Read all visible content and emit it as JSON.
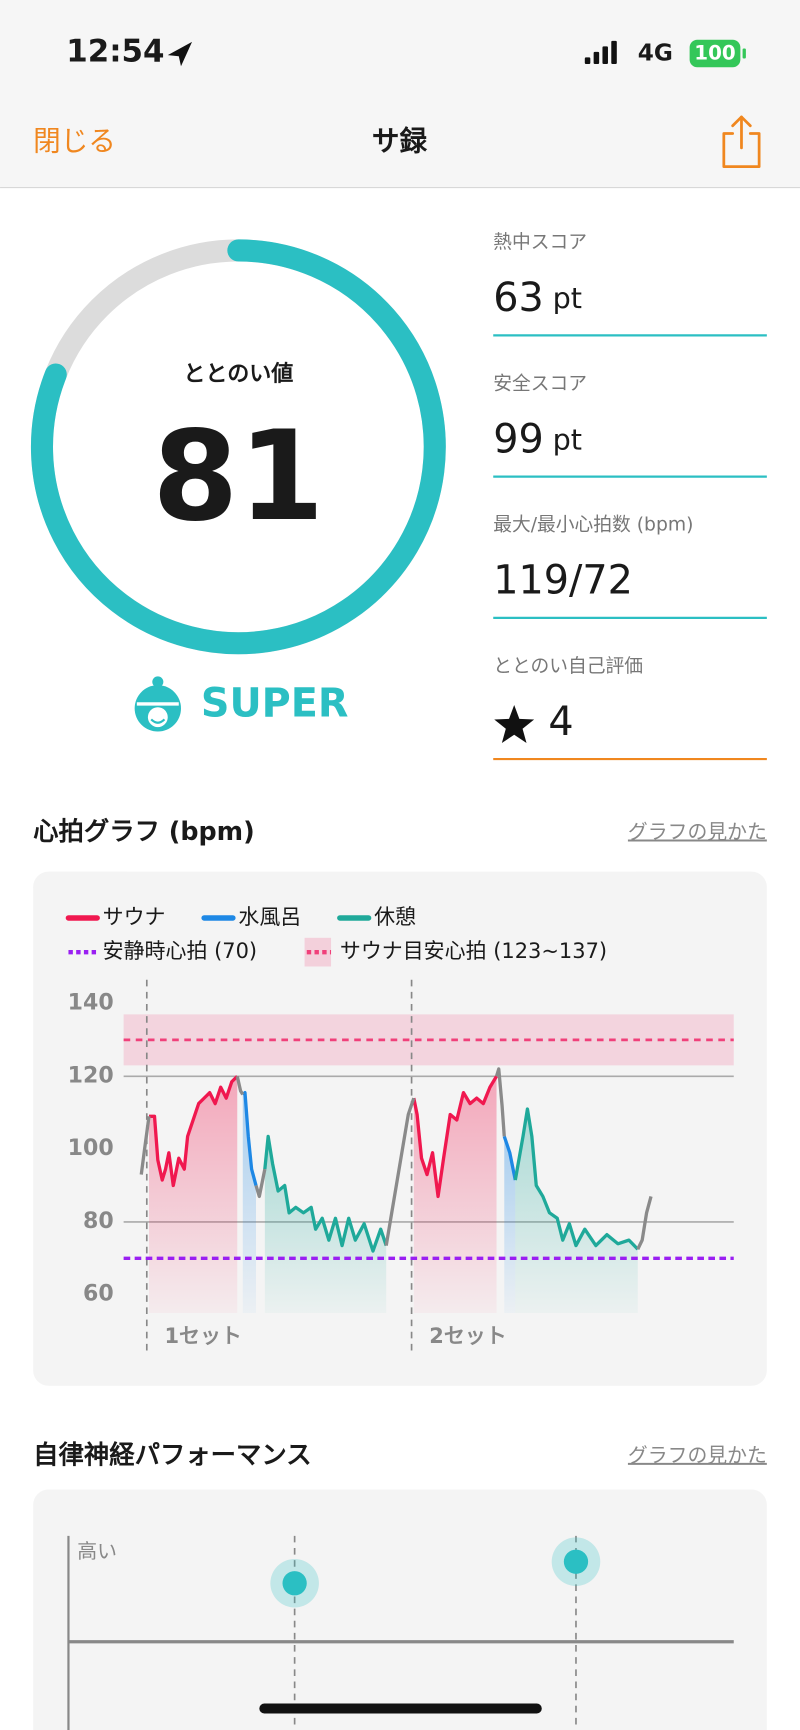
{
  "status_bar": {
    "time": "12:54",
    "network": "4G",
    "battery": "100"
  },
  "nav": {
    "close": "閉じる",
    "title": "サ録"
  },
  "score": {
    "label": "ととのい値",
    "value": 81,
    "rank": "SUPER",
    "color": "#2bbfc3"
  },
  "stats": [
    {
      "label": "熱中スコア",
      "value": 63,
      "unit": "pt"
    },
    {
      "label": "安全スコア",
      "value": 99,
      "unit": "pt"
    },
    {
      "label": "最大/最小心拍数 (bpm)",
      "value": "119/72"
    },
    {
      "label": "ととのい自己評価",
      "value": 4
    }
  ],
  "heart_chart": {
    "title": "心拍グラフ (bpm)",
    "link": "グラフの見かた",
    "type": "line",
    "xlim": [
      0,
      553
    ],
    "ylim": [
      55,
      145
    ],
    "yticks": [
      60,
      80,
      100,
      120,
      140
    ],
    "grid": [
      80,
      120
    ],
    "resting": {
      "label": "安静時心拍 (70)",
      "value": 70,
      "color": "#9a1ff2"
    },
    "target_band": {
      "label": "サウナ目安心拍 (123~137)",
      "range": [
        123,
        137
      ],
      "color": "#f0407a"
    },
    "sets": [
      {
        "label": "1セット",
        "x": 21
      },
      {
        "label": "2セット",
        "x": 261
      }
    ],
    "series": [
      {
        "name": "サウナ",
        "color": "#f0184f",
        "x": [
          23,
          28,
          31,
          35,
          38,
          41,
          45,
          50,
          55,
          58,
          63,
          68,
          73,
          78,
          83,
          88,
          93,
          98,
          103,
          null,
          263,
          266,
          270,
          275,
          280,
          285,
          290,
          296,
          302,
          308,
          314,
          320,
          326,
          332,
          338
        ],
        "values": [
          109,
          109,
          97,
          91.5,
          94.5,
          99,
          90,
          97.5,
          94.5,
          103.5,
          108,
          112.5,
          114,
          115.5,
          112.5,
          117,
          114,
          118.5,
          120,
          null,
          114,
          109.5,
          97.5,
          93,
          99,
          87,
          97.5,
          109.5,
          108,
          115.5,
          112.5,
          114,
          112.5,
          117,
          120
        ]
      },
      {
        "name": "水風呂",
        "color": "#1e88e5",
        "x": [
          108,
          110,
          113,
          116,
          120,
          null,
          345,
          350,
          355
        ],
        "values": [
          115,
          115.5,
          103.5,
          94.5,
          90,
          null,
          103.5,
          99,
          91.5
        ]
      },
      {
        "name": "休憩",
        "color": "#1fa99a",
        "x": [
          128,
          131,
          135,
          140,
          146,
          150,
          156,
          163,
          170,
          174,
          180,
          186,
          192,
          198,
          204,
          210,
          218,
          226,
          233,
          238,
          null,
          355,
          362,
          366,
          370,
          374,
          380,
          386,
          393,
          398,
          404,
          410,
          418,
          428,
          438,
          448,
          458,
          466
        ],
        "values": [
          94.5,
          103.5,
          96,
          88.5,
          90,
          82.5,
          84,
          82.5,
          84,
          78,
          81,
          75,
          81,
          73.5,
          81,
          75,
          79.5,
          72,
          78,
          73.5,
          null,
          91.5,
          103.5,
          111,
          103.5,
          90,
          87,
          82.5,
          81,
          75,
          79.5,
          73.5,
          78,
          73.5,
          76.5,
          74,
          75,
          72.5
        ]
      },
      {
        "color": "#8a8a8a",
        "x": [
          16,
          19,
          23,
          null,
          103,
          106,
          108,
          null,
          120,
          123,
          128,
          null,
          238,
          243,
          248,
          253,
          258,
          263,
          null,
          338,
          340,
          343,
          345,
          null,
          466,
          470,
          474,
          478
        ],
        "values": [
          93,
          100,
          109,
          null,
          120,
          116,
          115,
          null,
          90,
          87,
          94.5,
          null,
          73.5,
          82.5,
          91.5,
          100.5,
          109.5,
          114,
          null,
          120,
          122,
          112,
          103.5,
          null,
          72.5,
          75,
          82.5,
          87
        ]
      }
    ]
  },
  "autonomic_chart": {
    "title": "自律神経パフォーマンス",
    "link": "グラフの見かた",
    "axis_label": "高い",
    "xlim": [
      0,
      603
    ],
    "ylim": [
      -1,
      1
    ],
    "color": "#2bbfc3",
    "points": [
      {
        "x": 205,
        "value": 0.57
      },
      {
        "x": 460,
        "value": 0.78
      }
    ]
  }
}
